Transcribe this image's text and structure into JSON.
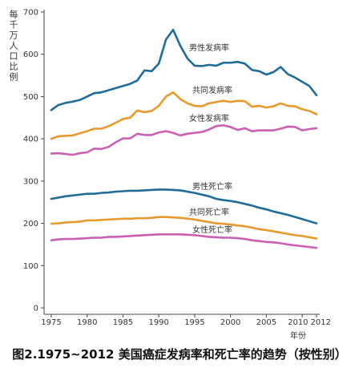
{
  "chart_data": {
    "type": "line",
    "caption": "图2.1975~2012 美国癌症发病率和死亡率的趋势（按性别）",
    "xlabel": "年份",
    "ylabel": "每千万人口比例",
    "xlim": [
      1975,
      2012
    ],
    "ylim": [
      0,
      700
    ],
    "xticks": [
      1975,
      1980,
      1985,
      1990,
      1995,
      2000,
      2005,
      2010,
      2012
    ],
    "yticks": [
      0,
      100,
      200,
      300,
      400,
      500,
      600,
      700
    ],
    "grid": false,
    "axis_color": "#444444",
    "x": [
      1975,
      1976,
      1977,
      1978,
      1979,
      1980,
      1981,
      1982,
      1983,
      1984,
      1985,
      1986,
      1987,
      1988,
      1989,
      1990,
      1991,
      1992,
      1993,
      1994,
      1995,
      1996,
      1997,
      1998,
      1999,
      2000,
      2001,
      2002,
      2003,
      2004,
      2005,
      2006,
      2007,
      2008,
      2009,
      2010,
      2011,
      2012
    ],
    "series": [
      {
        "name": "男性发病率",
        "color": "#1f6c99",
        "values": [
          468,
          480,
          485,
          488,
          492,
          500,
          508,
          510,
          515,
          520,
          525,
          530,
          538,
          562,
          560,
          578,
          635,
          658,
          620,
          590,
          573,
          572,
          575,
          573,
          580,
          580,
          582,
          578,
          563,
          560,
          552,
          558,
          570,
          553,
          545,
          535,
          525,
          503
        ]
      },
      {
        "name": "共同发病率",
        "color": "#e8992b",
        "values": [
          400,
          406,
          407,
          408,
          413,
          418,
          424,
          424,
          430,
          438,
          447,
          450,
          467,
          463,
          466,
          478,
          500,
          510,
          494,
          484,
          478,
          477,
          484,
          487,
          490,
          487,
          490,
          489,
          476,
          478,
          474,
          477,
          484,
          478,
          477,
          470,
          466,
          458
        ]
      },
      {
        "name": "女性发病率",
        "color": "#cc5fb4",
        "values": [
          365,
          366,
          364,
          362,
          366,
          368,
          377,
          376,
          381,
          392,
          401,
          401,
          412,
          409,
          409,
          415,
          418,
          414,
          408,
          412,
          414,
          416,
          422,
          430,
          432,
          428,
          421,
          425,
          418,
          420,
          420,
          420,
          424,
          429,
          428,
          420,
          423,
          425
        ]
      },
      {
        "name": "男性死亡率",
        "color": "#1f6c99",
        "values": [
          258,
          261,
          264,
          266,
          268,
          270,
          270,
          272,
          273,
          275,
          276,
          277,
          277,
          278,
          279,
          280,
          280,
          279,
          278,
          275,
          272,
          268,
          264,
          258,
          255,
          253,
          250,
          246,
          242,
          237,
          233,
          228,
          224,
          220,
          215,
          210,
          205,
          200
        ]
      },
      {
        "name": "共同死亡率",
        "color": "#e8992b",
        "values": [
          199,
          200,
          202,
          203,
          204,
          207,
          207,
          208,
          209,
          210,
          211,
          211,
          212,
          212,
          213,
          215,
          215,
          214,
          213,
          211,
          209,
          206,
          203,
          200,
          199,
          197,
          195,
          193,
          190,
          186,
          184,
          181,
          178,
          175,
          172,
          170,
          167,
          164
        ]
      },
      {
        "name": "女性死亡率",
        "color": "#cc5fb4",
        "values": [
          160,
          162,
          163,
          163,
          164,
          165,
          166,
          166,
          168,
          168,
          169,
          170,
          171,
          172,
          173,
          174,
          174,
          174,
          174,
          173,
          172,
          170,
          168,
          167,
          166,
          166,
          165,
          163,
          160,
          158,
          156,
          155,
          153,
          150,
          148,
          146,
          144,
          142
        ]
      }
    ]
  }
}
